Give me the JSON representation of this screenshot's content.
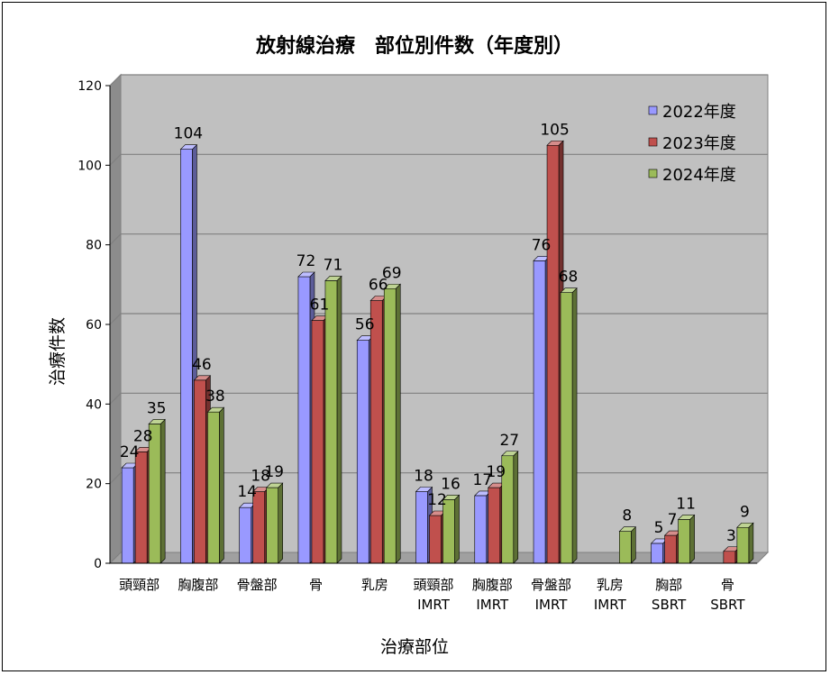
{
  "chart_data": {
    "type": "bar",
    "title": "放射線治療　部位別件数（年度別）",
    "xlabel": "治療部位",
    "ylabel": "治療件数",
    "ylim": [
      0,
      120
    ],
    "yticks": [
      "0",
      "20",
      "40",
      "60",
      "80",
      "100",
      "120"
    ],
    "grid": true,
    "legend_position": "top-right",
    "categories": [
      [
        "頭頸部"
      ],
      [
        "胸腹部"
      ],
      [
        "骨盤部"
      ],
      [
        "骨"
      ],
      [
        "乳房"
      ],
      [
        "頭頸部",
        "IMRT"
      ],
      [
        "胸腹部",
        "IMRT"
      ],
      [
        "骨盤部",
        "IMRT"
      ],
      [
        "乳房",
        "IMRT"
      ],
      [
        "胸部",
        "SBRT"
      ],
      [
        "骨",
        "SBRT"
      ]
    ],
    "series": [
      {
        "name": "2022年度",
        "color": "#9999ff",
        "values": [
          24,
          104,
          14,
          72,
          56,
          18,
          17,
          76,
          null,
          5,
          null
        ]
      },
      {
        "name": "2023年度",
        "color": "#c0504d",
        "values": [
          28,
          46,
          18,
          61,
          66,
          12,
          19,
          105,
          null,
          7,
          3
        ]
      },
      {
        "name": "2024年度",
        "color": "#9bbb59",
        "values": [
          35,
          38,
          19,
          71,
          69,
          16,
          27,
          68,
          8,
          11,
          9
        ]
      }
    ]
  }
}
